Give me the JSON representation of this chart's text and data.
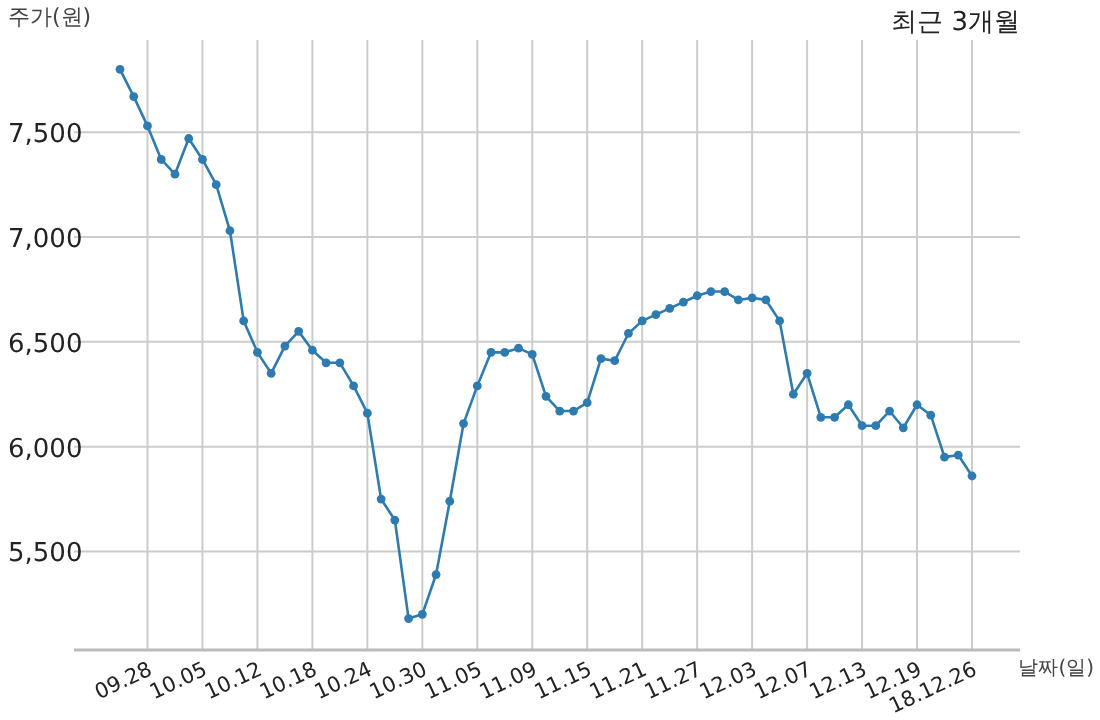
{
  "chart_data": {
    "type": "line",
    "title": "최근 3개월",
    "xlabel": "날짜(일)",
    "ylabel": "주가(원)",
    "categories": [
      null,
      null,
      "09.28",
      null,
      null,
      null,
      "10.05",
      null,
      null,
      null,
      "10.12",
      null,
      null,
      null,
      "10.18",
      null,
      null,
      null,
      "10.24",
      null,
      null,
      null,
      "10.30",
      null,
      null,
      null,
      "11.05",
      null,
      null,
      null,
      "11.09",
      null,
      null,
      null,
      "11.15",
      null,
      null,
      null,
      "11.21",
      null,
      null,
      null,
      "11.27",
      null,
      null,
      null,
      "12.03",
      null,
      null,
      null,
      "12.07",
      null,
      null,
      null,
      "12.13",
      null,
      null,
      null,
      "12.19",
      null,
      null,
      null,
      "18.12.26"
    ],
    "series": [
      {
        "color": "#2e7bb0",
        "values": [
          7800,
          7670,
          7530,
          7370,
          7300,
          7470,
          7370,
          7250,
          7030,
          6600,
          6450,
          6350,
          6480,
          6550,
          6460,
          6400,
          6400,
          6290,
          6160,
          5750,
          5650,
          5180,
          5200,
          5390,
          5740,
          6110,
          6290,
          6450,
          6450,
          6470,
          6440,
          6240,
          6170,
          6170,
          6210,
          6420,
          6410,
          6540,
          6600,
          6630,
          6660,
          6690,
          6720,
          6740,
          6740,
          6700,
          6710,
          6700,
          6600,
          6250,
          6350,
          6140,
          6140,
          6200,
          6100,
          6100,
          6170,
          6090,
          6200,
          6150,
          5950,
          5960,
          5860
        ]
      }
    ],
    "ylim": [
      5030,
      7940
    ],
    "yticks": [
      {
        "value": 5500,
        "label": "5,500"
      },
      {
        "value": 6000,
        "label": "6,000"
      },
      {
        "value": 6500,
        "label": "6,500"
      },
      {
        "value": 7000,
        "label": "7,000"
      },
      {
        "value": 7500,
        "label": "7,500"
      }
    ],
    "grid": true,
    "marker": "circle",
    "line_style": "solid"
  }
}
